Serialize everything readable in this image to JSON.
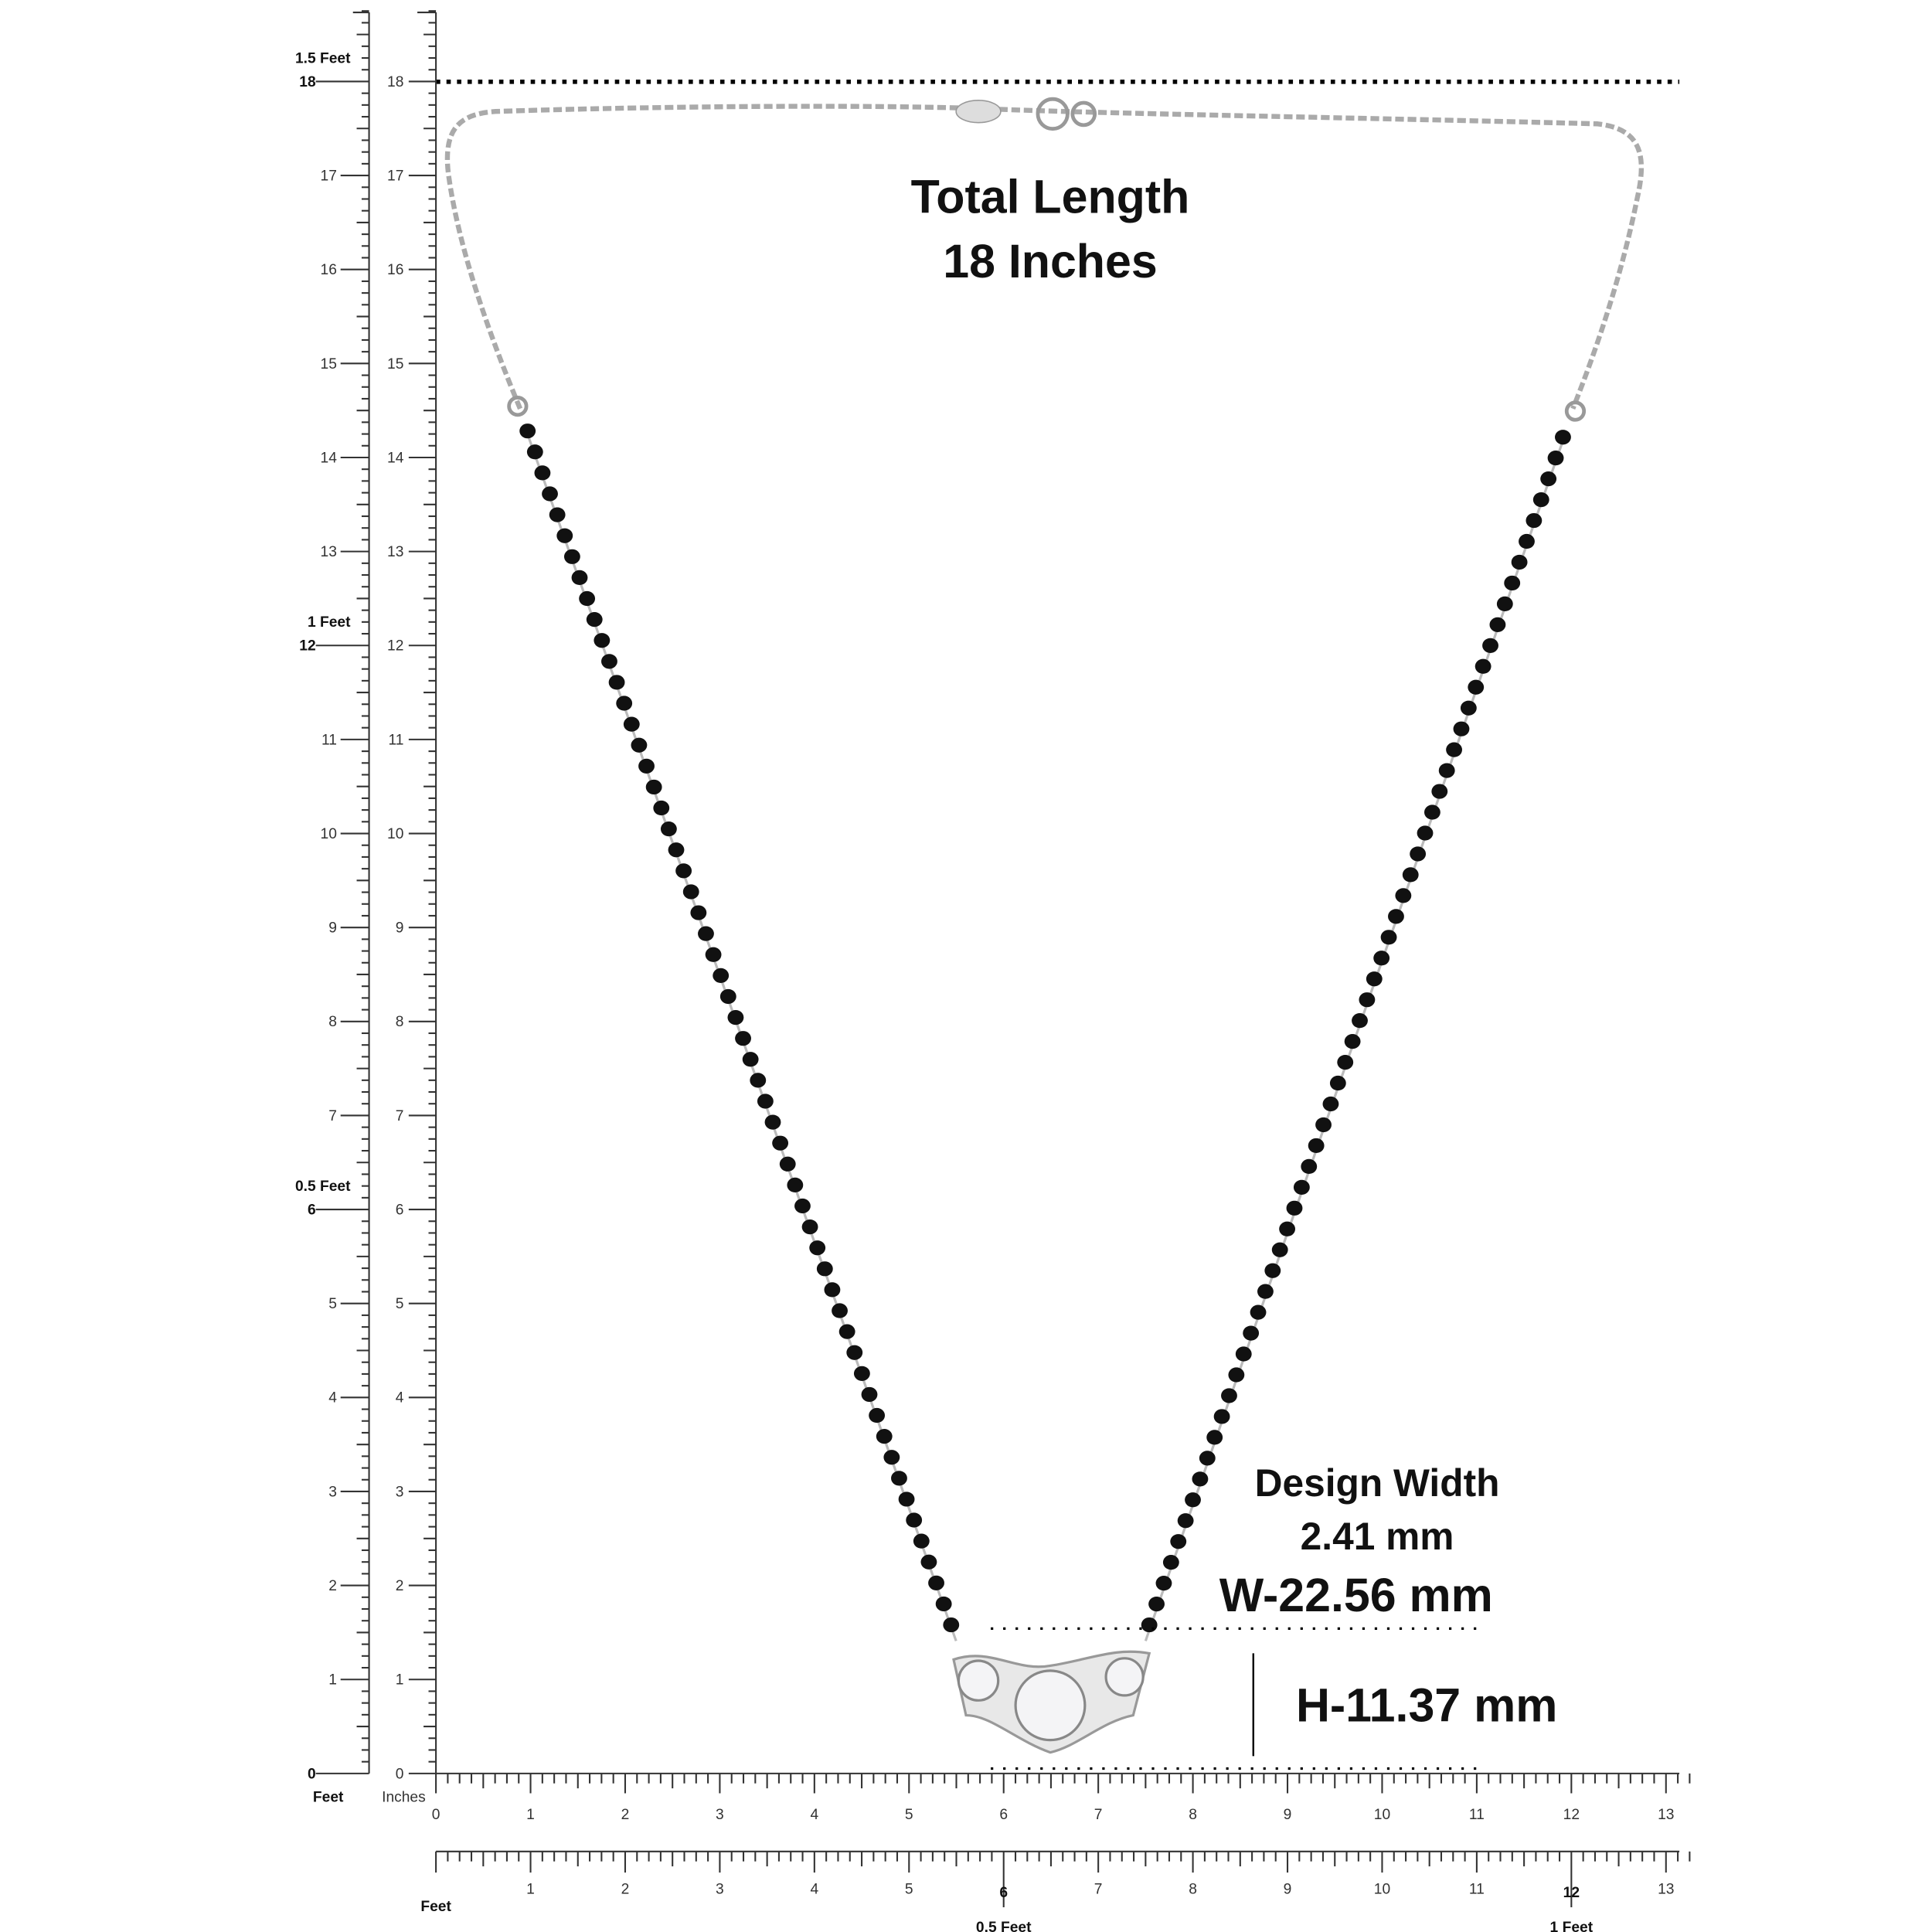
{
  "heading": {
    "line1": "Total Length",
    "line2": "18 Inches"
  },
  "annotations": {
    "design_width_label": "Design Width",
    "design_width_value": "2.41 mm",
    "width": "W-22.56 mm",
    "height": "H-11.37 mm"
  },
  "rulers": {
    "vertical_feet": {
      "unit": "Feet",
      "ticks": [
        0,
        1,
        2,
        3,
        4,
        5,
        6,
        7,
        8,
        9,
        10,
        11,
        12,
        13,
        14,
        15,
        16,
        17,
        18
      ],
      "feet_labels": [
        "0.5 Feet",
        "1 Feet",
        "1.5 Feet"
      ]
    },
    "vertical_inches": {
      "unit": "Inches",
      "ticks": [
        0,
        1,
        2,
        3,
        4,
        5,
        6,
        7,
        8,
        9,
        10,
        11,
        12,
        13,
        14,
        15,
        16,
        17,
        18
      ]
    },
    "horizontal_inches": {
      "ticks": [
        0,
        1,
        2,
        3,
        4,
        5,
        6,
        7,
        8,
        9,
        10,
        11,
        12,
        13
      ]
    },
    "horizontal_feet": {
      "unit": "Feet",
      "ticks": [
        1,
        2,
        3,
        4,
        5,
        6,
        7,
        8,
        9,
        10,
        11,
        12,
        13
      ],
      "feet_labels": [
        "0.5 Feet",
        "1 Feet"
      ]
    }
  }
}
